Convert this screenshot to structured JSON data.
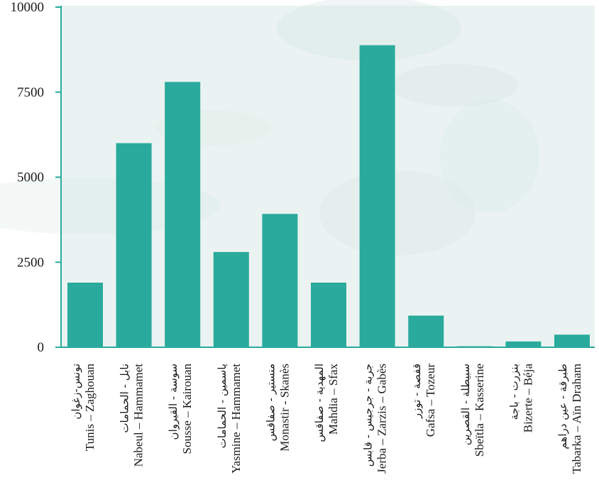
{
  "colors": {
    "bar": "#2aaa9c",
    "axis": "#2aaa9c",
    "plot_background": "#eaf3f1",
    "text": "#1a1a1a"
  },
  "chart_data": {
    "type": "bar",
    "title": "",
    "xlabel": "",
    "ylabel": "",
    "ylim": [
      0,
      10000
    ],
    "yticks": [
      0,
      2500,
      5000,
      7500,
      10000
    ],
    "grid": false,
    "categories": [
      "Tunis – Zaghouan",
      "Nabeul – Hammamet",
      "Sousse – Kairouan",
      "Yasmine – Hammamet",
      "Monastir - Skanès",
      "Mahdia – Sfax",
      "Jerba – Zarzis – Gabès",
      "Gafsa – Tozeur",
      "Sbeïtla – Kasserine",
      "Bizerte – Béja",
      "Tabarka – Aïn Draham"
    ],
    "categories_ar": [
      "تونس-زغوان",
      "نابل - الحمامات",
      "سوسة - القيروان",
      "ياسمين - الحمامات",
      "منستير - صفاقس",
      "المهدية - صفاقس",
      "جربة - جرجيس - قابس",
      "قفصة - توزر",
      "سبيطلة - القصرين",
      "بنزرت - باجة",
      "طبرقة - عين دراهم"
    ],
    "values": [
      1900,
      6000,
      7800,
      2800,
      3920,
      1900,
      8880,
      930,
      30,
      170,
      370
    ]
  }
}
